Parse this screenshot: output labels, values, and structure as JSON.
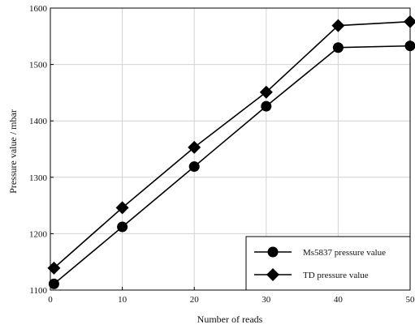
{
  "chart_data": {
    "type": "line",
    "title": "",
    "xlabel": "Number of reads",
    "ylabel": "Pressure value / mbar",
    "xlim": [
      0,
      50
    ],
    "ylim": [
      1100,
      1600
    ],
    "x_ticks": [
      0,
      10,
      20,
      30,
      40,
      50
    ],
    "y_ticks": [
      1100,
      1200,
      1300,
      1400,
      1500,
      1600
    ],
    "x_tick_labels": [
      "0",
      "10",
      "20",
      "30",
      "40",
      "50"
    ],
    "y_tick_labels": [
      "1100",
      "1200",
      "1300",
      "1400",
      "1500",
      "1600"
    ],
    "grid": true,
    "legend_position": "bottom-right",
    "series": [
      {
        "name": "Ms5837 pressure value",
        "marker": "circle",
        "color": "#000000",
        "x": [
          0.5,
          10,
          20,
          30,
          40,
          50
        ],
        "y": [
          1111,
          1212,
          1319,
          1426,
          1530,
          1533
        ]
      },
      {
        "name": "TD pressure value",
        "marker": "diamond",
        "color": "#000000",
        "x": [
          0.5,
          10,
          20,
          30,
          40,
          50
        ],
        "y": [
          1139,
          1246,
          1353,
          1451,
          1569,
          1576
        ]
      }
    ]
  }
}
